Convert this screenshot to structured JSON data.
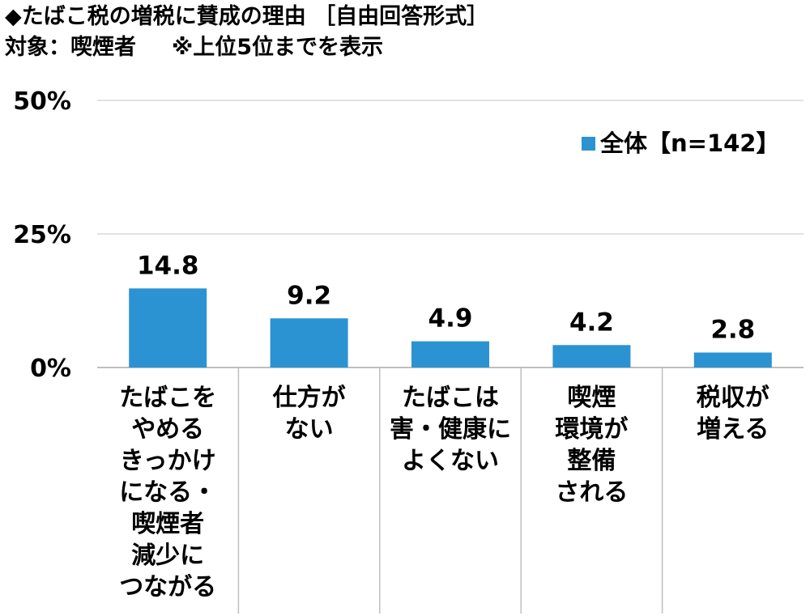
{
  "header": {
    "title": "◆たばこ税の増税に賛成の理由 ［自由回答形式］",
    "subtitle_target": "対象：喫煙者",
    "subtitle_note": "※上位5位までを表示"
  },
  "chart_data": {
    "type": "bar",
    "title": "◆たばこ税の増税に賛成の理由 ［自由回答形式］",
    "categories": [
      "たばこを\nやめる\nきっかけ\nになる・\n喫煙者\n減少に\nつながる",
      "仕方が\nない",
      "たばこは\n害・健康に\nよくない",
      "喫煙\n環境が\n整備\nされる",
      "税収が\n増える"
    ],
    "series": [
      {
        "name": "全体【n=142】",
        "values": [
          14.8,
          9.2,
          4.9,
          4.2,
          2.8
        ],
        "color": "#2b93d1"
      }
    ],
    "value_labels": [
      "14.8",
      "9.2",
      "4.9",
      "4.2",
      "2.8"
    ],
    "ylim": [
      0,
      50
    ],
    "yticks": [
      0,
      25,
      50
    ],
    "ytick_labels": [
      "0%",
      "25%",
      "50%"
    ],
    "xlabel": "",
    "ylabel": "",
    "grid": true,
    "legend_position": "top-right"
  }
}
